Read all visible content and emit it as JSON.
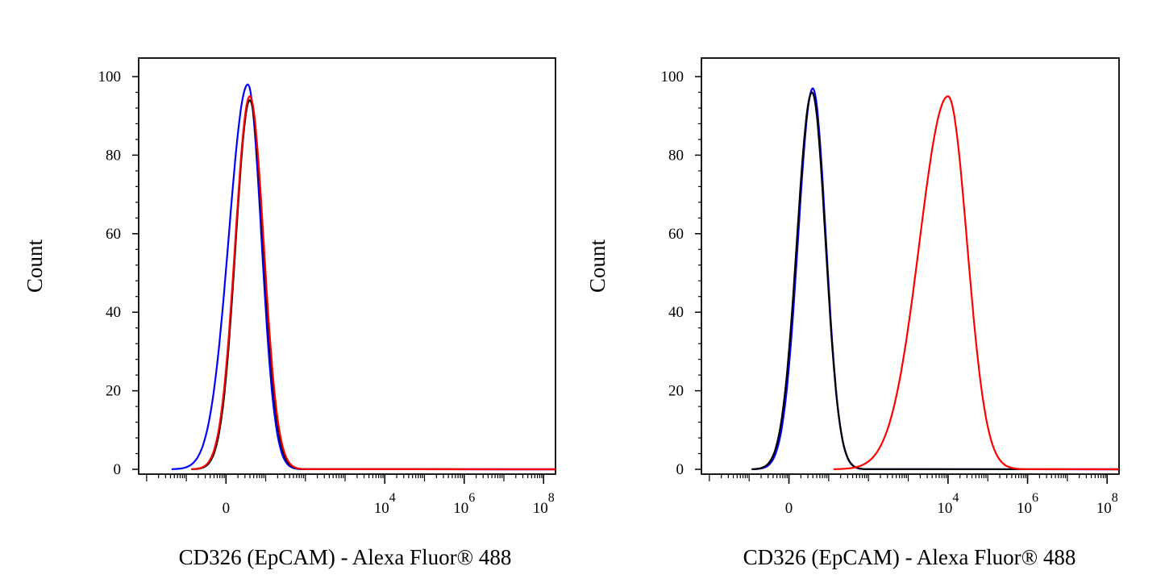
{
  "chart_data": [
    {
      "type": "line",
      "title": "",
      "xlabel": "CD326 (EpCAM) - Alexa Fluor® 488",
      "ylabel": "Count",
      "ylim": [
        0,
        100
      ],
      "yticks": [
        "0",
        "20",
        "40",
        "60",
        "80",
        "100"
      ],
      "xticks": [
        {
          "base": "0",
          "exp": ""
        },
        {
          "base": "10",
          "exp": "4"
        },
        {
          "base": "10",
          "exp": "6"
        },
        {
          "base": "10",
          "exp": "8"
        }
      ],
      "series": [
        {
          "color": "#0000ff",
          "peak_x": 0.55,
          "peak_y": 98,
          "sigma_left": 0.48,
          "sigma_right": 0.34
        },
        {
          "color": "#000000",
          "peak_x": 0.6,
          "peak_y": 94,
          "sigma_left": 0.36,
          "sigma_right": 0.34
        },
        {
          "color": "#ff0000",
          "peak_x": 0.6,
          "peak_y": 95,
          "sigma_left": 0.37,
          "sigma_right": 0.35
        }
      ]
    },
    {
      "type": "line",
      "title": "",
      "xlabel": "CD326 (EpCAM) - Alexa Fluor® 488",
      "ylabel": "Count",
      "ylim": [
        0,
        100
      ],
      "yticks": [
        "0",
        "20",
        "40",
        "60",
        "80",
        "100"
      ],
      "xticks": [
        {
          "base": "0",
          "exp": ""
        },
        {
          "base": "10",
          "exp": "4"
        },
        {
          "base": "10",
          "exp": "6"
        },
        {
          "base": "10",
          "exp": "8"
        }
      ],
      "series": [
        {
          "color": "#0000ff",
          "peak_x": 0.6,
          "peak_y": 97,
          "sigma_left": 0.37,
          "sigma_right": 0.33
        },
        {
          "color": "#000000",
          "peak_x": 0.58,
          "peak_y": 96,
          "sigma_left": 0.38,
          "sigma_right": 0.34
        },
        {
          "color": "#ff0000",
          "peak_x": 4.0,
          "peak_y": 95,
          "sigma_left": 0.72,
          "sigma_right": 0.48
        }
      ]
    }
  ]
}
